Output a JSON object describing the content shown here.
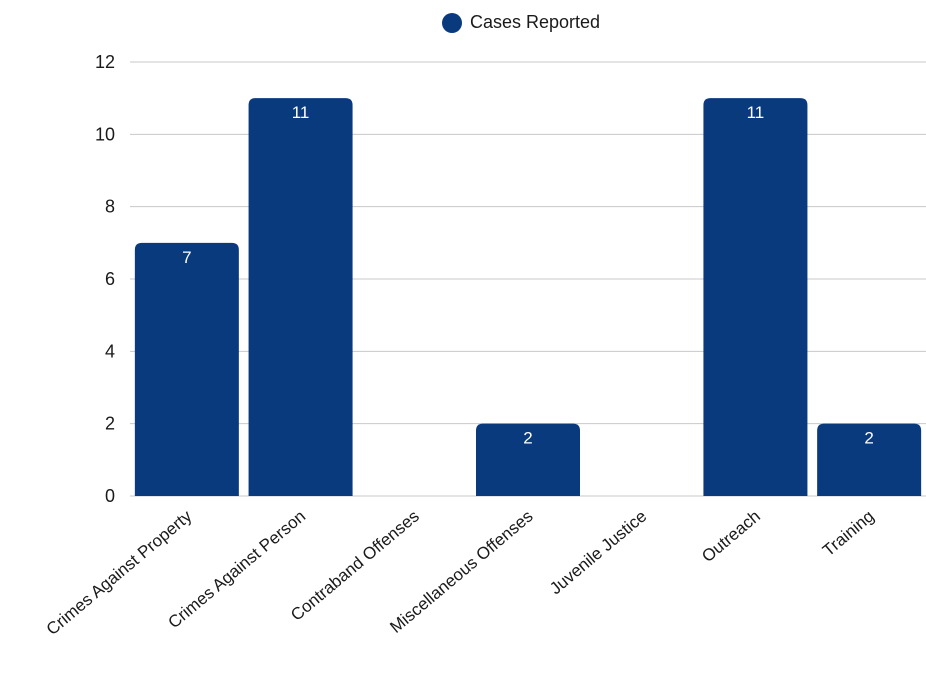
{
  "chart_data": {
    "type": "bar",
    "categories": [
      "Crimes Against Property",
      "Crimes Against Person",
      "Contraband Offenses",
      "Miscellaneous Offenses",
      "Juvenile Justice",
      "Outreach",
      "Training"
    ],
    "series": [
      {
        "name": "Cases Reported",
        "values": [
          7,
          11,
          0,
          2,
          0,
          11,
          2
        ],
        "color": "#0a3a7e"
      }
    ],
    "data_labels": [
      "7",
      "11",
      "",
      "2",
      "",
      "11",
      "2"
    ],
    "ylim": [
      0,
      12
    ],
    "yticks": [
      0,
      2,
      4,
      6,
      8,
      10,
      12
    ],
    "grid": true,
    "legend_position": "top-center",
    "title": "",
    "xlabel": "",
    "ylabel": ""
  }
}
